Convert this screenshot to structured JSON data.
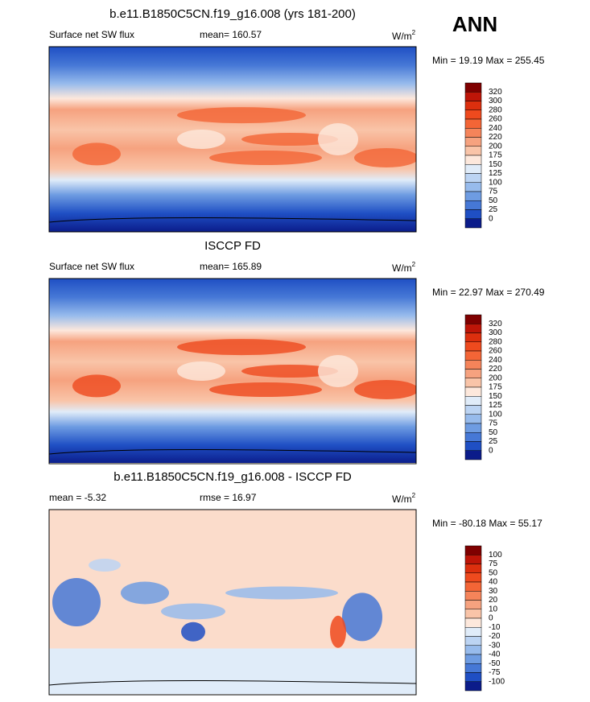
{
  "season": "ANN",
  "colorbar_colors": [
    "#7f0000",
    "#be1508",
    "#dc2f0e",
    "#ee4a1e",
    "#f36536",
    "#f5845a",
    "#f6a27f",
    "#f9c4a8",
    "#fde8dc",
    "#e0ecf9",
    "#bcd4f3",
    "#97bbec",
    "#6e9ce2",
    "#4678d6",
    "#1f4fc4",
    "#0b1c8a"
  ],
  "panels": [
    {
      "title": "b.e11.B1850C5CN.f19_g16.008 (yrs 181-200)",
      "left": "Surface net SW flux",
      "center": "mean= 160.57",
      "unit": "W/m",
      "unit_sup": "2",
      "minmax": "Min =  19.19 Max = 255.45",
      "colorbar_labels": [
        320,
        300,
        280,
        260,
        240,
        220,
        200,
        175,
        150,
        125,
        100,
        75,
        50,
        25,
        0
      ]
    },
    {
      "title": "ISCCP FD",
      "left": "Surface net SW flux",
      "center": "mean= 165.89",
      "unit": "W/m",
      "unit_sup": "2",
      "minmax": "Min =  22.97 Max = 270.49",
      "colorbar_labels": [
        320,
        300,
        280,
        260,
        240,
        220,
        200,
        175,
        150,
        125,
        100,
        75,
        50,
        25,
        0
      ]
    },
    {
      "title": "b.e11.B1850C5CN.f19_g16.008 - ISCCP FD",
      "left": "mean =  -5.32",
      "center": "rmse =  16.97",
      "unit": "W/m",
      "unit_sup": "2",
      "minmax": "Min = -80.18 Max =  55.17",
      "colorbar_labels": [
        100,
        75,
        50,
        40,
        30,
        20,
        10,
        0,
        -10,
        -20,
        -30,
        -40,
        -50,
        -75,
        -100
      ]
    }
  ]
}
